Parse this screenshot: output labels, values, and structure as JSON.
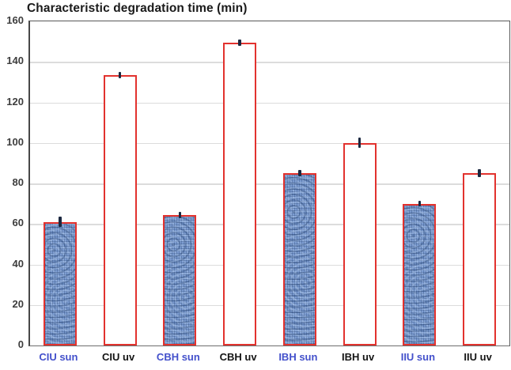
{
  "title": "Characteristic degradation time (min)",
  "chart_data": {
    "type": "bar",
    "title": "Characteristic degradation time (min)",
    "categories": [
      "CIU sun",
      "CIU uv",
      "CBH sun",
      "CBH uv",
      "IBH sun",
      "IBH uv",
      "IIU sun",
      "IIU uv"
    ],
    "values": [
      61,
      133.5,
      64.5,
      149.5,
      85,
      100,
      70,
      85
    ],
    "errors": [
      2.5,
      1.5,
      1.5,
      1.5,
      1.5,
      2.5,
      1.5,
      2
    ],
    "bar_fill_types": [
      "pattern",
      "plain",
      "pattern",
      "plain",
      "pattern",
      "plain",
      "pattern",
      "plain"
    ],
    "category_label_colors": [
      "#4350cb",
      "#141414",
      "#4350cb",
      "#141414",
      "#4350cb",
      "#141414",
      "#4350cb",
      "#141414"
    ],
    "ylabel": "",
    "xlabel": "",
    "ylim": [
      0,
      160
    ],
    "ytick_step": 20,
    "yticks": [
      0,
      20,
      40,
      60,
      80,
      100,
      120,
      140,
      160
    ],
    "grid": true,
    "legend_position": "none",
    "colors": {
      "bar_outline": "#e2322e",
      "pattern_fill_base": "#7d9dd2",
      "plain_fill": "#ffffff",
      "sun_label": "#4350cb",
      "uv_label": "#141414",
      "gridline": "#dcdcdc",
      "axis_border": "#595959",
      "tick_label": "#3d3d3d",
      "error_bar": "#1b2840",
      "background": "#ffffff"
    }
  }
}
